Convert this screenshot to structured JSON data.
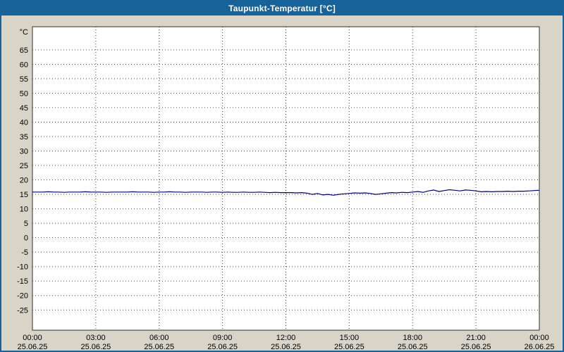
{
  "window": {
    "title": "Taupunkt-Temperatur [°C]"
  },
  "colors": {
    "titlebar": "#176399",
    "title_text": "#ffffff",
    "window_bg": "#d8d4c8",
    "window_border": "#176399",
    "plot_bg": "#ffffff",
    "plot_border": "#303030",
    "grid": "#444444",
    "axis_text": "#000000",
    "series_line": "#000080"
  },
  "chart_data": {
    "type": "line",
    "title": "Taupunkt-Temperatur [°C]",
    "ylabel": "°C",
    "xlabel": "",
    "ylim": [
      -32,
      73
    ],
    "yticks": {
      "min": -25,
      "max": 65,
      "step": 5
    },
    "xlim": [
      0,
      24
    ],
    "grid": "dotted",
    "legend": "none",
    "xticks": [
      {
        "hour": 0,
        "time": "00:00",
        "date": "25.06.25"
      },
      {
        "hour": 3,
        "time": "03:00",
        "date": "25.06.25"
      },
      {
        "hour": 6,
        "time": "06:00",
        "date": "25.06.25"
      },
      {
        "hour": 9,
        "time": "09:00",
        "date": "25.06.25"
      },
      {
        "hour": 12,
        "time": "12:00",
        "date": "25.06.25"
      },
      {
        "hour": 15,
        "time": "15:00",
        "date": "25.06.25"
      },
      {
        "hour": 18,
        "time": "18:00",
        "date": "25.06.25"
      },
      {
        "hour": 21,
        "time": "21:00",
        "date": "25.06.25"
      },
      {
        "hour": 24,
        "time": "00:00",
        "date": "26.06.25"
      }
    ],
    "x_start": 0,
    "x_step": 0.25,
    "series": [
      {
        "name": "Taupunkt-Temperatur",
        "unit": "°C",
        "color": "#000080",
        "values": [
          15.8,
          15.8,
          15.8,
          15.9,
          15.8,
          15.8,
          15.7,
          15.8,
          15.8,
          15.8,
          15.9,
          15.8,
          15.8,
          15.8,
          15.7,
          15.8,
          15.8,
          15.8,
          15.8,
          15.9,
          15.8,
          15.8,
          15.8,
          15.7,
          15.8,
          15.8,
          15.9,
          15.8,
          15.8,
          15.7,
          15.8,
          15.8,
          15.8,
          15.7,
          15.8,
          15.8,
          15.7,
          15.8,
          15.7,
          15.7,
          15.8,
          15.7,
          15.7,
          15.8,
          15.7,
          15.6,
          15.7,
          15.6,
          15.6,
          15.6,
          15.5,
          15.6,
          15.4,
          15.0,
          15.3,
          14.8,
          15.0,
          14.7,
          15.0,
          15.2,
          15.3,
          15.5,
          15.4,
          15.5,
          15.3,
          15.0,
          15.2,
          15.4,
          15.6,
          15.5,
          15.7,
          15.6,
          15.8,
          16.0,
          15.7,
          16.2,
          16.5,
          16.0,
          16.3,
          16.6,
          16.4,
          16.2,
          16.5,
          16.4,
          16.2,
          15.9,
          16.0,
          15.9,
          16.0,
          16.0,
          16.1,
          16.0,
          16.1,
          16.1,
          16.2,
          16.3,
          16.4
        ]
      }
    ]
  }
}
